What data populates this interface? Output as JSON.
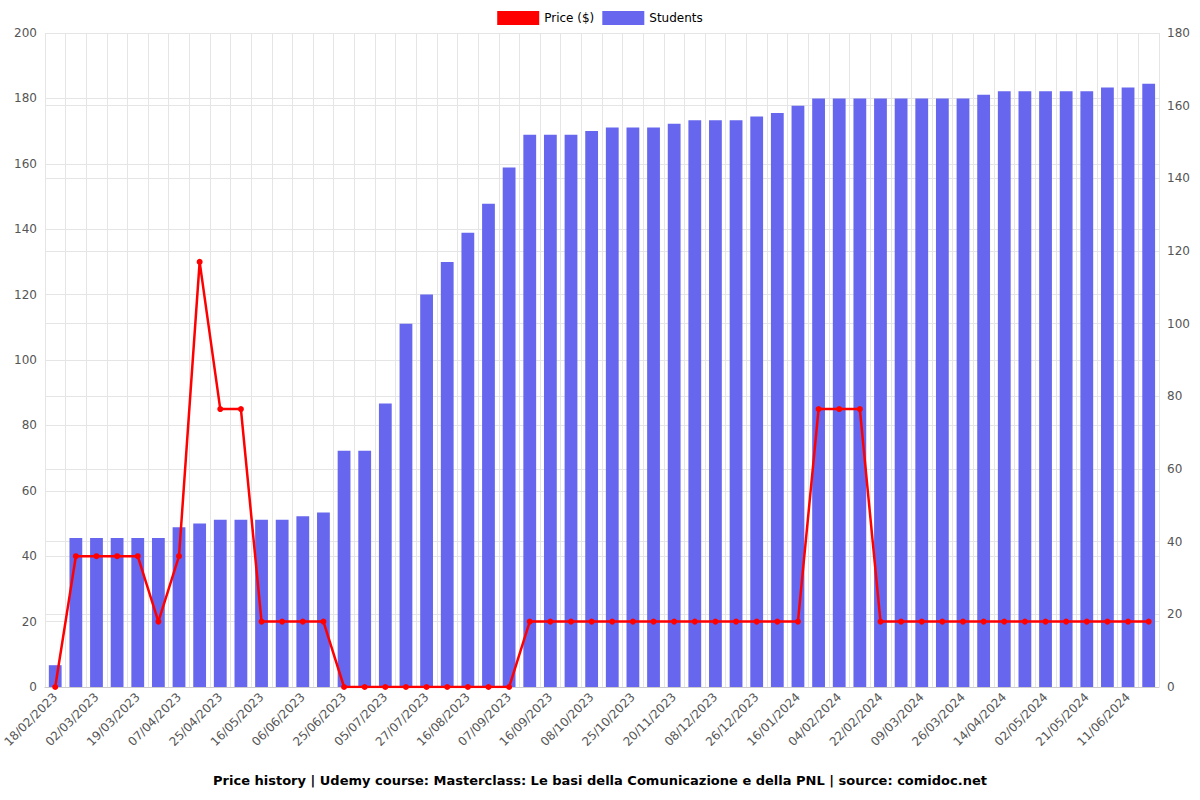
{
  "chart_data": {
    "type": "bar",
    "title": "Price history | Udemy course: Masterclass: Le basi della Comunicazione e della PNL | source: comidoc.net",
    "categories": [
      "18/02/2023",
      null,
      "02/03/2023",
      null,
      "19/03/2023",
      null,
      "07/04/2023",
      null,
      "25/04/2023",
      null,
      "16/05/2023",
      null,
      "06/06/2023",
      null,
      "25/06/2023",
      null,
      "05/07/2023",
      null,
      "27/07/2023",
      null,
      "16/08/2023",
      null,
      "07/09/2023",
      null,
      "16/09/2023",
      null,
      "08/10/2023",
      null,
      "25/10/2023",
      null,
      "20/11/2023",
      null,
      "08/12/2023",
      null,
      "26/12/2023",
      null,
      "16/01/2024",
      null,
      "04/02/2024",
      null,
      "22/02/2024",
      null,
      "09/03/2024",
      null,
      "26/03/2024",
      null,
      "14/04/2024",
      null,
      "02/05/2024",
      null,
      "21/05/2024",
      null,
      "11/06/2024",
      null
    ],
    "series": [
      {
        "name": "Price ($)",
        "type": "line",
        "color": "#ff0000",
        "marker": "circle",
        "values": [
          0,
          40,
          40,
          40,
          40,
          20,
          40,
          130,
          85,
          85,
          20,
          20,
          20,
          20,
          0,
          0,
          0,
          0,
          0,
          0,
          0,
          0,
          0,
          20,
          20,
          20,
          20,
          20,
          20,
          20,
          20,
          20,
          20,
          20,
          20,
          20,
          20,
          85,
          85,
          85,
          20,
          20,
          20,
          20,
          20,
          20,
          20,
          20,
          20,
          20,
          20,
          20,
          20,
          20
        ]
      },
      {
        "name": "Students",
        "type": "bar",
        "color": "#6666ee",
        "axis": "y2",
        "values": [
          6,
          41,
          41,
          41,
          41,
          41,
          44,
          45,
          46,
          46,
          46,
          46,
          47,
          48,
          65,
          65,
          78,
          100,
          108,
          117,
          125,
          133,
          143,
          152,
          152,
          152,
          153,
          154,
          154,
          154,
          155,
          156,
          156,
          156,
          157,
          158,
          160,
          162,
          162,
          162,
          162,
          162,
          162,
          162,
          162,
          163,
          164,
          164,
          164,
          164,
          164,
          165,
          165,
          166
        ]
      }
    ],
    "ylim": [
      0,
      200
    ],
    "yticks": [
      0,
      20,
      40,
      60,
      80,
      100,
      120,
      140,
      160,
      180,
      200
    ],
    "y2lim": [
      0,
      180
    ],
    "y2ticks": [
      0,
      20,
      40,
      60,
      80,
      100,
      120,
      140,
      160,
      180
    ],
    "grid": true,
    "legend": "top"
  }
}
